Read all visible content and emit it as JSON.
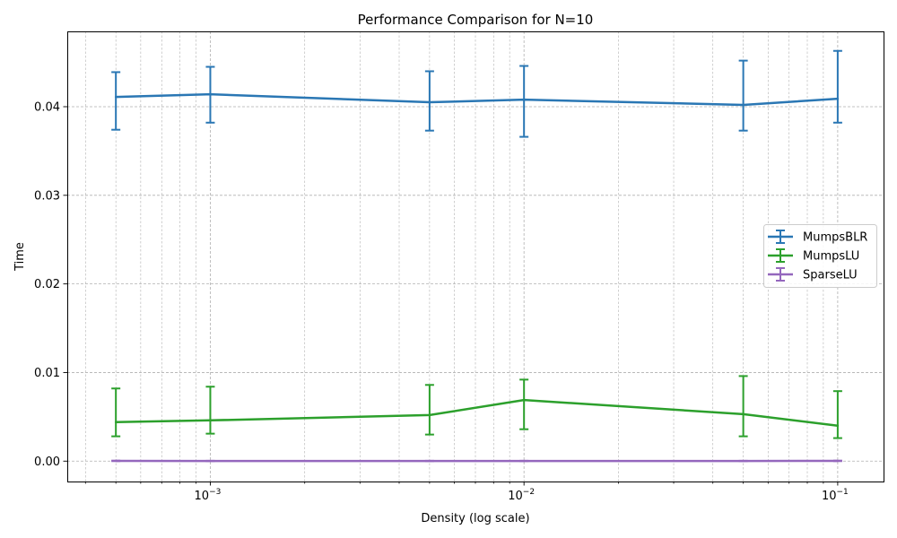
{
  "chart_data": {
    "type": "line",
    "title": "Performance Comparison for N=10",
    "xlabel": "Density (log scale)",
    "ylabel": "Time",
    "x_scale": "log",
    "xlim": [
      0.00035,
      0.14
    ],
    "ylim": [
      -0.0023,
      0.0485
    ],
    "x_ticks": [
      {
        "value": 0.001,
        "base": "10",
        "exp": "−3"
      },
      {
        "value": 0.01,
        "base": "10",
        "exp": "−2"
      },
      {
        "value": 0.1,
        "base": "10",
        "exp": "−1"
      }
    ],
    "y_ticks": [
      {
        "value": 0.0,
        "label": "0.00"
      },
      {
        "value": 0.01,
        "label": "0.01"
      },
      {
        "value": 0.02,
        "label": "0.02"
      },
      {
        "value": 0.03,
        "label": "0.03"
      },
      {
        "value": 0.04,
        "label": "0.04"
      }
    ],
    "grid": true,
    "legend_position": "center-right",
    "series": [
      {
        "name": "MumpsBLR",
        "color": "#2a77b4",
        "x": [
          0.0005,
          0.001,
          0.005,
          0.01,
          0.05,
          0.1
        ],
        "y": [
          0.0411,
          0.0414,
          0.0405,
          0.0408,
          0.0402,
          0.0409
        ],
        "err_low": [
          0.0374,
          0.0382,
          0.0373,
          0.0366,
          0.0373,
          0.0382
        ],
        "err_high": [
          0.0439,
          0.0445,
          0.044,
          0.0446,
          0.0452,
          0.0463
        ]
      },
      {
        "name": "MumpsLU",
        "color": "#2ca02c",
        "x": [
          0.0005,
          0.001,
          0.005,
          0.01,
          0.05,
          0.1
        ],
        "y": [
          0.0044,
          0.0046,
          0.0052,
          0.0069,
          0.0053,
          0.004
        ],
        "err_low": [
          0.0028,
          0.0031,
          0.003,
          0.0036,
          0.0028,
          0.0026
        ],
        "err_high": [
          0.0082,
          0.0084,
          0.0086,
          0.0092,
          0.0096,
          0.0079
        ]
      },
      {
        "name": "SparseLU",
        "color": "#9467bd",
        "x": [
          0.0005,
          0.001,
          0.005,
          0.01,
          0.05,
          0.1
        ],
        "y": [
          3e-05,
          2e-05,
          2e-05,
          2e-05,
          2e-05,
          3e-05
        ],
        "err_low": [
          0.0,
          0.0,
          0.0,
          0.0,
          0.0,
          0.0
        ],
        "err_high": [
          6e-05,
          4e-05,
          4e-05,
          4e-05,
          4e-05,
          6e-05
        ]
      }
    ]
  }
}
